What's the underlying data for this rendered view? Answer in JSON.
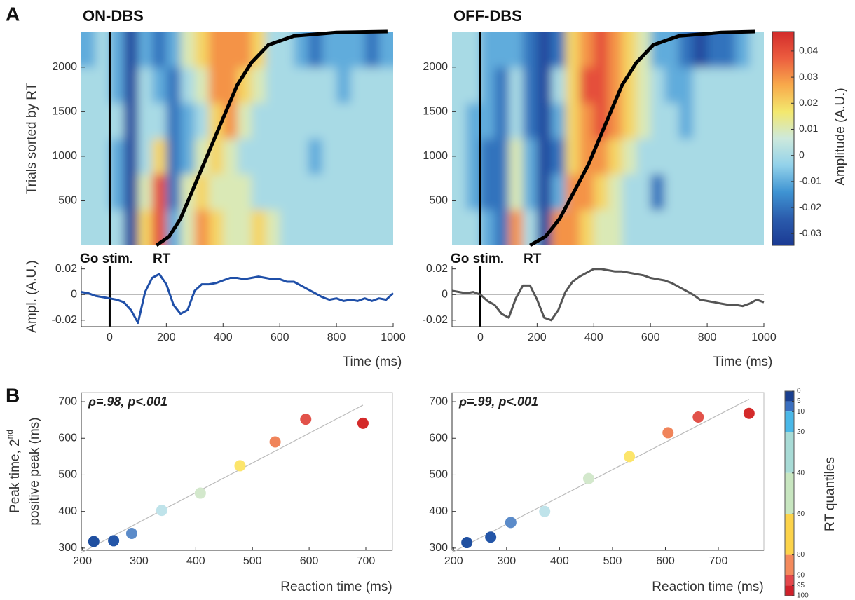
{
  "chart_data": [
    {
      "type": "heatmap",
      "panel_label": "A",
      "title": "ON-DBS",
      "ylabel": "Trials sorted by RT",
      "x": [
        -75,
        -25,
        25,
        75,
        125,
        175,
        225,
        275,
        325,
        375,
        425,
        475,
        525,
        575,
        625,
        675,
        725,
        775,
        825,
        875,
        925,
        975
      ],
      "y": [
        200,
        600,
        1000,
        1400,
        1800,
        2200
      ],
      "values": [
        [
          0,
          0,
          0,
          -0.03,
          0.02,
          0.04,
          -0.01,
          0.01,
          0.03,
          0.02,
          0.01,
          0.01,
          0.02,
          0.01,
          0,
          0,
          0,
          0,
          0,
          0,
          0,
          0
        ],
        [
          0,
          0,
          -0.01,
          -0.03,
          0.01,
          0.04,
          -0.02,
          0.01,
          0.02,
          0.01,
          0.01,
          0.01,
          0,
          0,
          0,
          0,
          0,
          0,
          0,
          0,
          0,
          0
        ],
        [
          0,
          0,
          -0.01,
          -0.03,
          0,
          0.02,
          -0.02,
          -0.01,
          0.01,
          0.02,
          0.01,
          0,
          0,
          0,
          0,
          0,
          -0.01,
          0,
          0,
          0,
          0,
          0
        ],
        [
          0,
          0,
          0,
          -0.03,
          0,
          0,
          -0.02,
          -0.01,
          0,
          0.02,
          0.03,
          0.01,
          0,
          0,
          0,
          0,
          0,
          0,
          0,
          0,
          0,
          0
        ],
        [
          0,
          0,
          -0.01,
          -0.03,
          0,
          -0.01,
          -0.02,
          0,
          0.01,
          0.03,
          0.03,
          0.02,
          0.01,
          0,
          0,
          0,
          0,
          0,
          -0.01,
          0,
          0,
          0
        ],
        [
          -0.01,
          0,
          -0.01,
          -0.03,
          -0.01,
          -0.02,
          -0.01,
          0.01,
          0.02,
          0.03,
          0.03,
          0.03,
          0.02,
          0,
          0,
          -0.01,
          -0.02,
          -0.01,
          -0.01,
          -0.01,
          -0.02,
          -0.01
        ]
      ],
      "xlim": [
        -100,
        1000
      ],
      "ylim": [
        0,
        2400
      ],
      "yticks": [
        500,
        1000,
        1500,
        2000
      ],
      "vlines": [
        0
      ],
      "annotations": [
        "Go stim.",
        "RT"
      ],
      "series": [
        {
          "color": "#000000",
          "x": [
            165,
            210,
            250,
            290,
            330,
            370,
            410,
            450,
            500,
            560,
            650,
            800,
            980
          ],
          "values": [
            0,
            100,
            300,
            600,
            900,
            1200,
            1500,
            1800,
            2050,
            2250,
            2350,
            2390,
            2400
          ]
        }
      ]
    },
    {
      "type": "heatmap",
      "title": "OFF-DBS",
      "x": [
        -75,
        -25,
        25,
        75,
        125,
        175,
        225,
        275,
        325,
        375,
        425,
        475,
        525,
        575,
        625,
        675,
        725,
        775,
        825,
        875,
        925,
        975
      ],
      "y": [
        200,
        600,
        1000,
        1400,
        1800,
        2200
      ],
      "values": [
        [
          0,
          0,
          -0.01,
          -0.02,
          0.03,
          0,
          -0.03,
          0.03,
          0.03,
          0.02,
          0.01,
          0.01,
          0,
          0,
          0,
          0,
          0,
          0,
          0,
          0,
          0,
          0
        ],
        [
          0,
          -0.01,
          -0.02,
          -0.02,
          0.01,
          -0.01,
          -0.03,
          -0.01,
          0.03,
          0.03,
          0.02,
          0.01,
          0,
          0,
          -0.02,
          0,
          0,
          0,
          0,
          0,
          0,
          0
        ],
        [
          0,
          -0.01,
          -0.02,
          -0.02,
          0.01,
          -0.01,
          -0.03,
          -0.02,
          0.02,
          0.03,
          0.03,
          0.02,
          0.01,
          0,
          0,
          0,
          0,
          0,
          0,
          0,
          0,
          0
        ],
        [
          0,
          -0.01,
          -0.01,
          -0.02,
          0,
          -0.02,
          -0.03,
          -0.01,
          0.02,
          0.03,
          0.04,
          0.03,
          0.02,
          0.01,
          0,
          0,
          -0.01,
          0,
          0,
          0,
          0,
          0
        ],
        [
          0,
          0,
          -0.01,
          -0.02,
          0,
          -0.02,
          -0.03,
          0,
          0.02,
          0.04,
          0.04,
          0.03,
          0.02,
          0.01,
          0,
          -0.01,
          -0.01,
          0,
          0,
          0,
          0,
          0
        ],
        [
          0,
          0,
          -0.01,
          -0.01,
          -0.01,
          -0.02,
          -0.03,
          -0.02,
          0.02,
          0.03,
          0.04,
          0.03,
          0.02,
          0.01,
          -0.01,
          -0.01,
          -0.02,
          -0.03,
          -0.02,
          -0.02,
          -0.01,
          0
        ]
      ],
      "xlim": [
        -100,
        1000
      ],
      "ylim": [
        0,
        2400
      ],
      "yticks": [
        500,
        1000,
        1500,
        2000
      ],
      "vlines": [
        0
      ],
      "annotations": [
        "Go stim.",
        "RT"
      ],
      "series": [
        {
          "color": "#000000",
          "x": [
            175,
            230,
            280,
            330,
            380,
            420,
            460,
            500,
            550,
            610,
            700,
            850,
            970
          ],
          "values": [
            0,
            100,
            300,
            600,
            900,
            1200,
            1500,
            1800,
            2050,
            2250,
            2350,
            2390,
            2400
          ]
        }
      ],
      "colorbar": {
        "label": "Amplitude (A.U.)",
        "lim": [
          -0.0345,
          0.0475
        ],
        "ticks": [
          -0.03,
          -0.02,
          -0.01,
          0,
          0.01,
          0.02,
          0.03,
          0.04
        ],
        "colors": [
          "#1b3a93",
          "#2b5cad",
          "#3f94d3",
          "#93d2ea",
          "#cde9dc",
          "#f3e86e",
          "#f8a94b",
          "#ec5d3f",
          "#d22b2b"
        ]
      }
    },
    {
      "type": "line",
      "ylabel": "Ampl. (A.U.)",
      "xlabel": "Time (ms)",
      "x": [
        -100,
        -75,
        -50,
        -25,
        0,
        25,
        50,
        75,
        100,
        125,
        150,
        175,
        200,
        225,
        250,
        275,
        300,
        325,
        350,
        375,
        400,
        425,
        450,
        475,
        500,
        525,
        550,
        575,
        600,
        625,
        650,
        675,
        700,
        725,
        750,
        775,
        800,
        825,
        850,
        875,
        900,
        925,
        950,
        975,
        1000
      ],
      "series": [
        {
          "color": "#1f4fa8",
          "values": [
            0.002,
            0.001,
            -0.001,
            -0.002,
            -0.003,
            -0.004,
            -0.006,
            -0.012,
            -0.022,
            0.002,
            0.013,
            0.016,
            0.008,
            -0.008,
            -0.015,
            -0.012,
            0.003,
            0.008,
            0.008,
            0.009,
            0.011,
            0.013,
            0.013,
            0.012,
            0.013,
            0.014,
            0.013,
            0.012,
            0.012,
            0.01,
            0.01,
            0.007,
            0.004,
            0.001,
            -0.002,
            -0.004,
            -0.003,
            -0.005,
            -0.004,
            -0.005,
            -0.003,
            -0.005,
            -0.003,
            -0.004,
            0.001
          ]
        }
      ],
      "xlim": [
        -100,
        1000
      ],
      "xticks": [
        0,
        200,
        400,
        600,
        800,
        1000
      ],
      "ylim": [
        -0.025,
        0.022
      ],
      "yticks": [
        -0.02,
        0,
        0.02
      ]
    },
    {
      "type": "line",
      "xlabel": "Time (ms)",
      "x": [
        -100,
        -75,
        -50,
        -25,
        0,
        25,
        50,
        75,
        100,
        125,
        150,
        175,
        200,
        225,
        250,
        275,
        300,
        325,
        350,
        375,
        400,
        425,
        450,
        475,
        500,
        525,
        550,
        575,
        600,
        625,
        650,
        675,
        700,
        725,
        750,
        775,
        800,
        825,
        850,
        875,
        900,
        925,
        950,
        975,
        1000
      ],
      "series": [
        {
          "color": "#555555",
          "values": [
            0.003,
            0.002,
            0.001,
            0.002,
            0,
            -0.005,
            -0.008,
            -0.015,
            -0.018,
            -0.003,
            0.007,
            0.007,
            -0.004,
            -0.018,
            -0.02,
            -0.012,
            0.002,
            0.01,
            0.014,
            0.017,
            0.02,
            0.02,
            0.019,
            0.018,
            0.018,
            0.017,
            0.016,
            0.015,
            0.013,
            0.012,
            0.011,
            0.009,
            0.006,
            0.003,
            0,
            -0.004,
            -0.005,
            -0.006,
            -0.007,
            -0.008,
            -0.008,
            -0.009,
            -0.007,
            -0.004,
            -0.006
          ]
        }
      ],
      "xlim": [
        -100,
        1000
      ],
      "xticks": [
        0,
        200,
        400,
        600,
        800,
        1000
      ],
      "ylim": [
        -0.025,
        0.022
      ],
      "yticks": [
        -0.02,
        0,
        0.02
      ]
    },
    {
      "type": "scatter",
      "panel_label": "B",
      "annotation": "ρ=.98, p<.001",
      "ylabel": {
        "text": "Peak time, 2",
        "sup": "nd",
        "line2": "positive peak (ms)"
      },
      "xlabel": "Reaction time (ms)",
      "x": [
        220,
        255,
        287,
        340,
        408,
        478,
        540,
        594,
        695
      ],
      "values": [
        318,
        320,
        340,
        403,
        450,
        525,
        590,
        652,
        641
      ],
      "colors": [
        "#1f4fa0",
        "#2456a8",
        "#5b8bc9",
        "#bfe3ea",
        "#d3e8cc",
        "#fce56b",
        "#f0845a",
        "#e2524a",
        "#d42a2a"
      ],
      "xlim": [
        198,
        747
      ],
      "xticks": [
        200,
        300,
        400,
        500,
        600,
        700
      ],
      "ylim": [
        294,
        725
      ],
      "yticks": [
        300,
        400,
        500,
        600,
        700
      ]
    },
    {
      "type": "scatter",
      "annotation": "ρ=.99, p<.001",
      "xlabel": "Reaction time (ms)",
      "x": [
        225,
        270,
        308,
        372,
        455,
        532,
        605,
        662,
        758
      ],
      "values": [
        315,
        330,
        370,
        400,
        490,
        550,
        615,
        658,
        668
      ],
      "colors": [
        "#1f4fa0",
        "#2456a8",
        "#5b8bc9",
        "#bfe3ea",
        "#d3e8cc",
        "#fce56b",
        "#f0845a",
        "#e2524a",
        "#d42a2a"
      ],
      "xlim": [
        197,
        786
      ],
      "xticks": [
        200,
        300,
        400,
        500,
        600,
        700
      ],
      "ylim": [
        294,
        725
      ],
      "yticks": [
        300,
        400,
        500,
        600,
        700
      ],
      "colorbar": {
        "label": "RT quantiles",
        "ticks": [
          0,
          5,
          10,
          20,
          40,
          60,
          80,
          90,
          95,
          100
        ],
        "colors": [
          "#1a3f8f",
          "#3a6fc0",
          "#4ab8e8",
          "#a8dbd6",
          "#c8e6c0",
          "#fcd34a",
          "#f48a5c",
          "#e4484b",
          "#d0202a"
        ]
      }
    }
  ]
}
